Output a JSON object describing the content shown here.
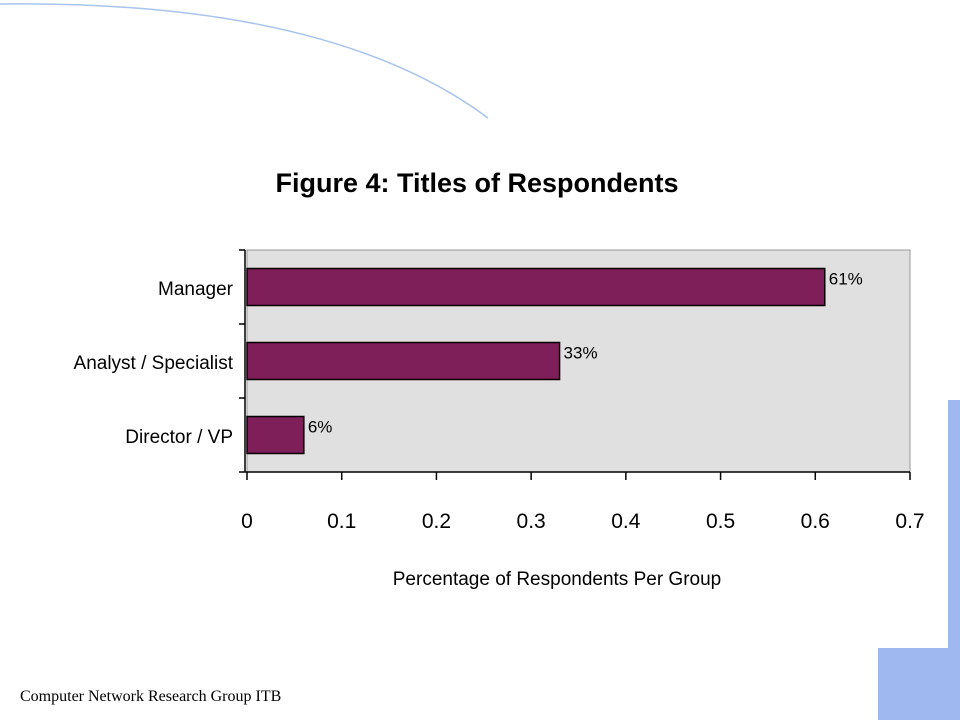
{
  "footer": {
    "text": "Computer Network Research Group ITB"
  },
  "colors": {
    "bar": "#7e1f5a",
    "plot_bg": "#e0e0e0",
    "accent": "#9fb8ef"
  },
  "chart_data": {
    "type": "bar",
    "orientation": "horizontal",
    "title": "Figure 4:  Titles of Respondents",
    "xlabel": "Percentage of Respondents Per Group",
    "ylabel": "",
    "categories": [
      "Manager",
      "Analyst / Specialist",
      "Director / VP"
    ],
    "values": [
      0.61,
      0.33,
      0.06
    ],
    "data_labels": [
      "61%",
      "33%",
      "6%"
    ],
    "xlim": [
      0,
      0.7
    ],
    "xticks": [
      "0",
      "0.1",
      "0.2",
      "0.3",
      "0.4",
      "0.5",
      "0.6",
      "0.7"
    ],
    "grid": false,
    "legend": "none"
  }
}
